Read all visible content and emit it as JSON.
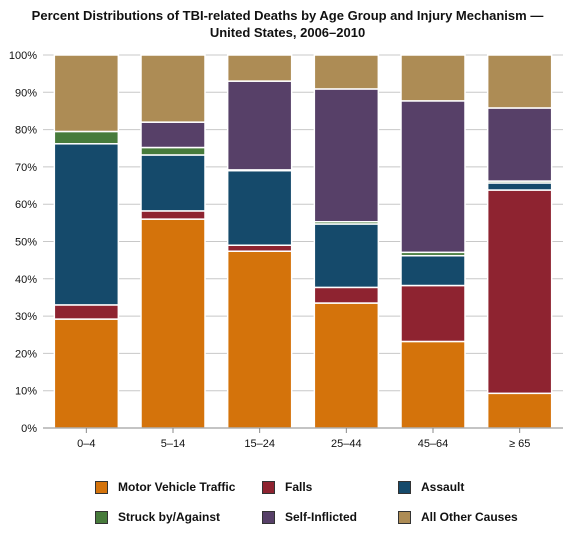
{
  "chart_data": {
    "type": "bar",
    "stacked": true,
    "title": "Percent Distributions of TBI-related Deaths by Age Group and Injury Mechanism —",
    "subtitle": "United States, 2006–2010",
    "categories": [
      "0–4",
      "5–14",
      "15–24",
      "25–44",
      "45–64",
      "≥ 65"
    ],
    "ylim": [
      0,
      100
    ],
    "y_ticks": [
      "0%",
      "10%",
      "20%",
      "30%",
      "40%",
      "50%",
      "60%",
      "70%",
      "80%",
      "90%",
      "100%"
    ],
    "grid": true,
    "legend_position": "bottom",
    "series": [
      {
        "name": "Motor Vehicle Traffic",
        "color": "#d4730b",
        "values": [
          29.2,
          56.0,
          47.4,
          33.5,
          23.2,
          9.3
        ]
      },
      {
        "name": "Falls",
        "color": "#8e2330",
        "values": [
          3.8,
          2.2,
          1.6,
          4.2,
          15.0,
          54.5
        ]
      },
      {
        "name": "Assault",
        "color": "#154a6b",
        "values": [
          43.2,
          15.0,
          20.0,
          17.0,
          8.0,
          1.9
        ]
      },
      {
        "name": "Struck by/Against",
        "color": "#477b3b",
        "values": [
          3.3,
          2.0,
          0.2,
          0.6,
          0.9,
          0.5
        ]
      },
      {
        "name": "Self-Inflicted",
        "color": "#574068",
        "values": [
          0.0,
          6.8,
          23.8,
          35.6,
          40.6,
          19.6
        ]
      },
      {
        "name": "All Other Causes",
        "color": "#ad8c55",
        "values": [
          20.5,
          18.0,
          7.0,
          9.1,
          12.3,
          14.2
        ]
      }
    ]
  }
}
